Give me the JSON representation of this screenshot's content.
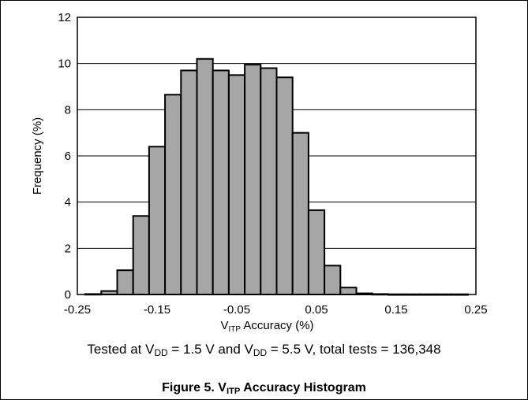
{
  "chart_data": {
    "type": "bar",
    "title": "",
    "xlabel": {
      "main": "V",
      "sub": "ITP",
      "rest": " Accuracy (%)"
    },
    "ylabel": "Frequency (%)",
    "xlim": [
      -0.25,
      0.25
    ],
    "ylim": [
      0,
      12
    ],
    "x_ticks": [
      "-0.25",
      "-0.15",
      "-0.05",
      "0.05",
      "0.15",
      "0.25"
    ],
    "y_ticks": [
      "0",
      "2",
      "4",
      "6",
      "8",
      "10",
      "12"
    ],
    "grid": "horizontal",
    "bin_width": 0.02,
    "bin_centers": [
      -0.23,
      -0.21,
      -0.19,
      -0.17,
      -0.15,
      -0.13,
      -0.11,
      -0.09,
      -0.07,
      -0.05,
      -0.03,
      -0.01,
      0.01,
      0.03,
      0.05,
      0.07,
      0.09,
      0.11,
      0.13,
      0.15,
      0.17,
      0.19,
      0.21,
      0.23
    ],
    "values": [
      0.02,
      0.15,
      1.05,
      3.4,
      6.4,
      8.65,
      9.7,
      10.2,
      9.7,
      9.5,
      9.95,
      9.8,
      9.4,
      7.0,
      3.65,
      1.25,
      0.3,
      0.05,
      0.02,
      0.01,
      0.01,
      0.01,
      0.01,
      0.01
    ],
    "bar_color": "#a6a6a6"
  },
  "note": {
    "p1": "Tested at V",
    "s1": "DD",
    "p2": " = 1.5 V and V",
    "s2": "DD",
    "p3": " = 5.5 V, total tests = 136,348"
  },
  "caption": {
    "p1": "Figure 5. V",
    "s1": "ITP",
    "p2": " Accuracy Histogram"
  }
}
